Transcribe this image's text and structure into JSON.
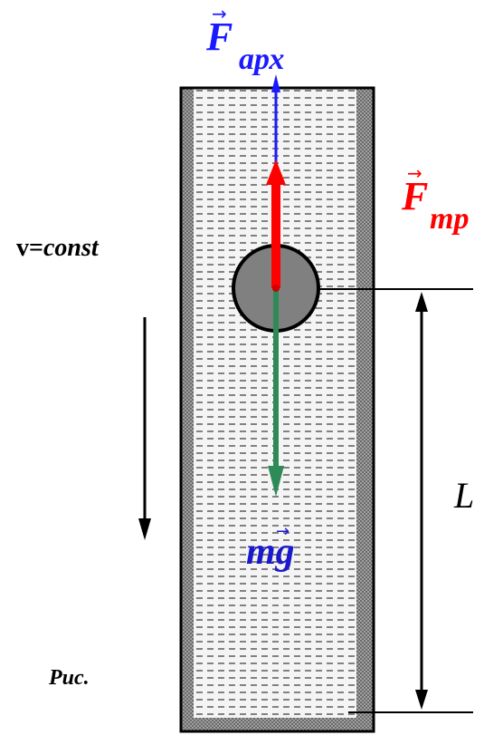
{
  "labels": {
    "archimedes_force": {
      "symbol": "F",
      "subscript": "арх",
      "vector": "→"
    },
    "friction_force": {
      "symbol": "F",
      "subscript": "тр",
      "vector": "→"
    },
    "gravity_force": {
      "prefix": "m",
      "symbol": "g",
      "vector": "→"
    },
    "velocity_prefix": "v=",
    "velocity_value": "const",
    "distance": "L",
    "figure_caption": "Рис."
  },
  "colors": {
    "archimedes": "#1a1aff",
    "friction": "#ff0000",
    "gravity": "#2e8b57",
    "gravity_label": "#1a1acc",
    "liquid_bg": "#f4f4f4",
    "liquid_dash": "#111111",
    "wall": "#8a8a8a",
    "ball": "#808080",
    "outline": "#000000"
  }
}
